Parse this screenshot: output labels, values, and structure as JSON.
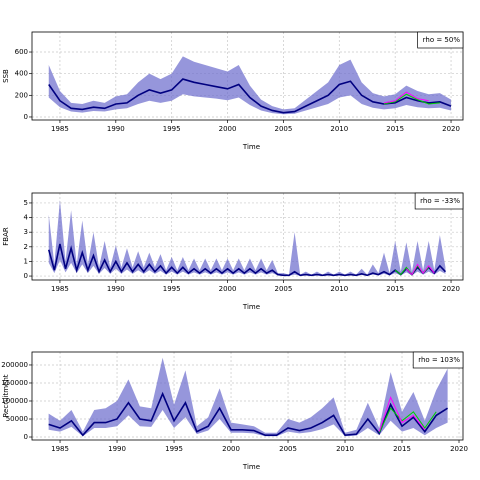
{
  "chart_data": [
    {
      "type": "line",
      "ylabel": "SSB",
      "xlabel": "Time",
      "annotation": "rho = 50%",
      "xlim": [
        1982.5,
        2021.07
      ],
      "xticks": [
        1985,
        1990,
        1995,
        2000,
        2005,
        2010,
        2015,
        2020
      ],
      "ylim": [
        -28,
        785
      ],
      "yticks": [
        0,
        200,
        400,
        600
      ],
      "grid": true,
      "band_color": "#6a6acc",
      "x": [
        1984,
        1985,
        1986,
        1987,
        1988,
        1989,
        1990,
        1991,
        1992,
        1993,
        1994,
        1995,
        1996,
        1997,
        1998,
        1999,
        2000,
        2001,
        2002,
        2003,
        2004,
        2005,
        2006,
        2007,
        2008,
        2009,
        2010,
        2011,
        2012,
        2013,
        2014,
        2015,
        2016,
        2017,
        2018,
        2019,
        2020
      ],
      "series": [
        {
          "color": "#000080",
          "values": [
            300,
            150,
            80,
            70,
            90,
            80,
            120,
            130,
            200,
            250,
            220,
            250,
            350,
            320,
            300,
            280,
            260,
            300,
            180,
            100,
            60,
            40,
            50,
            100,
            150,
            200,
            300,
            330,
            200,
            140,
            120,
            130,
            180,
            150,
            130,
            140,
            100
          ],
          "upper": [
            480,
            240,
            130,
            120,
            150,
            130,
            190,
            210,
            320,
            400,
            350,
            400,
            560,
            510,
            480,
            450,
            420,
            480,
            290,
            160,
            100,
            70,
            80,
            160,
            240,
            320,
            480,
            530,
            320,
            220,
            190,
            210,
            290,
            240,
            210,
            220,
            160
          ],
          "lower": [
            180,
            90,
            50,
            40,
            55,
            50,
            70,
            80,
            120,
            150,
            130,
            150,
            210,
            190,
            180,
            170,
            155,
            180,
            110,
            60,
            35,
            25,
            30,
            60,
            90,
            120,
            180,
            200,
            120,
            85,
            70,
            80,
            110,
            90,
            80,
            85,
            60
          ]
        },
        {
          "color": "#00cc00",
          "x": [
            2014,
            2015,
            2016,
            2017,
            2018,
            2019
          ],
          "values": [
            120,
            140,
            210,
            160,
            120,
            130
          ]
        },
        {
          "color": "#ff00ff",
          "x": [
            2014,
            2015,
            2016,
            2017,
            2018
          ],
          "values": [
            130,
            150,
            230,
            170,
            150
          ]
        }
      ]
    },
    {
      "type": "line",
      "ylabel": "FBAR",
      "xlabel": "Time",
      "annotation": "rho = -33%",
      "xlim": [
        1982.5,
        2021.07
      ],
      "xticks": [
        1985,
        1990,
        1995,
        2000,
        2005,
        2010,
        2015,
        2020
      ],
      "ylim": [
        -0.27,
        5.68
      ],
      "yticks": [
        0,
        1,
        2,
        3,
        4,
        5
      ],
      "grid": true,
      "band_color": "#6a6acc",
      "x": [
        1984,
        1984.5,
        1985,
        1985.5,
        1986,
        1986.5,
        1987,
        1987.5,
        1988,
        1988.5,
        1989,
        1989.5,
        1990,
        1990.5,
        1991,
        1991.5,
        1992,
        1992.5,
        1993,
        1993.5,
        1994,
        1994.5,
        1995,
        1995.5,
        1996,
        1996.5,
        1997,
        1997.5,
        1998,
        1998.5,
        1999,
        1999.5,
        2000,
        2000.5,
        2001,
        2001.5,
        2002,
        2002.5,
        2003,
        2003.5,
        2004,
        2004.5,
        2005,
        2005.5,
        2006,
        2006.5,
        2007,
        2007.5,
        2008,
        2008.5,
        2009,
        2009.5,
        2010,
        2010.5,
        2011,
        2011.5,
        2012,
        2012.5,
        2013,
        2013.5,
        2014,
        2014.5,
        2015,
        2015.5,
        2016,
        2016.5,
        2017,
        2017.5,
        2018,
        2018.5,
        2019,
        2019.5
      ],
      "series": [
        {
          "color": "#000080",
          "values": [
            1.8,
            0.4,
            2.2,
            0.5,
            1.9,
            0.4,
            1.6,
            0.4,
            1.4,
            0.3,
            1.1,
            0.3,
            1.0,
            0.3,
            0.9,
            0.3,
            0.8,
            0.3,
            0.8,
            0.3,
            0.7,
            0.2,
            0.6,
            0.2,
            0.6,
            0.2,
            0.5,
            0.2,
            0.5,
            0.2,
            0.5,
            0.2,
            0.5,
            0.2,
            0.5,
            0.2,
            0.5,
            0.2,
            0.5,
            0.2,
            0.4,
            0.1,
            0.05,
            0.05,
            0.3,
            0.05,
            0.1,
            0.05,
            0.1,
            0.05,
            0.1,
            0.05,
            0.1,
            0.05,
            0.1,
            0.05,
            0.15,
            0.05,
            0.2,
            0.1,
            0.3,
            0.1,
            0.4,
            0.1,
            0.5,
            0.1,
            0.6,
            0.2,
            0.6,
            0.2,
            0.7,
            0.3
          ],
          "upper": [
            4.2,
            0.8,
            5.2,
            1.0,
            4.5,
            0.8,
            3.8,
            0.8,
            3.0,
            0.6,
            2.4,
            0.6,
            2.1,
            0.6,
            1.9,
            0.6,
            1.7,
            0.6,
            1.6,
            0.6,
            1.5,
            0.4,
            1.3,
            0.4,
            1.3,
            0.4,
            1.2,
            0.4,
            1.2,
            0.4,
            1.2,
            0.4,
            1.2,
            0.4,
            1.2,
            0.4,
            1.2,
            0.4,
            1.2,
            0.4,
            1.1,
            0.2,
            0.2,
            0.1,
            3.0,
            0.1,
            0.3,
            0.1,
            0.3,
            0.1,
            0.3,
            0.1,
            0.3,
            0.1,
            0.3,
            0.1,
            0.5,
            0.1,
            0.8,
            0.2,
            1.6,
            0.2,
            2.4,
            0.3,
            2.3,
            0.3,
            2.4,
            0.4,
            2.4,
            0.4,
            2.8,
            0.6
          ],
          "lower": [
            0.9,
            0.2,
            1.1,
            0.25,
            0.9,
            0.2,
            0.8,
            0.2,
            0.7,
            0.15,
            0.55,
            0.15,
            0.5,
            0.15,
            0.45,
            0.15,
            0.4,
            0.15,
            0.4,
            0.15,
            0.35,
            0.1,
            0.3,
            0.1,
            0.3,
            0.1,
            0.25,
            0.1,
            0.25,
            0.1,
            0.25,
            0.1,
            0.25,
            0.1,
            0.25,
            0.1,
            0.25,
            0.1,
            0.25,
            0.1,
            0.2,
            0.05,
            0.02,
            0.02,
            0.1,
            0.02,
            0.05,
            0.02,
            0.05,
            0.02,
            0.05,
            0.02,
            0.05,
            0.02,
            0.05,
            0.02,
            0.07,
            0.02,
            0.1,
            0.05,
            0.15,
            0.05,
            0.2,
            0.05,
            0.25,
            0.05,
            0.3,
            0.1,
            0.3,
            0.1,
            0.35,
            0.15
          ]
        },
        {
          "color": "#00cc00",
          "x": [
            2015,
            2015.5,
            2016,
            2016.5,
            2017,
            2017.5,
            2018
          ],
          "values": [
            0.4,
            0.1,
            0.6,
            0.1,
            0.7,
            0.2,
            0.6
          ]
        },
        {
          "color": "#ff00ff",
          "x": [
            2016,
            2016.5,
            2017,
            2017.5,
            2018,
            2018.5
          ],
          "values": [
            0.5,
            0.1,
            0.8,
            0.2,
            0.7,
            0.2
          ]
        }
      ]
    },
    {
      "type": "line",
      "ylabel": "Recruitment",
      "xlabel": "Time",
      "annotation": "rho = 103%",
      "xlim": [
        1982.54,
        2020.35
      ],
      "xticks": [
        1985,
        1990,
        1995,
        2000,
        2005,
        2010,
        2015,
        2020
      ],
      "ylim": [
        -8300,
        236000
      ],
      "yticks": [
        0,
        50000,
        100000,
        150000,
        200000
      ],
      "grid": true,
      "band_color": "#6a6acc",
      "x": [
        1984,
        1985,
        1986,
        1987,
        1988,
        1989,
        1990,
        1991,
        1992,
        1993,
        1994,
        1995,
        1996,
        1997,
        1998,
        1999,
        2000,
        2001,
        2002,
        2003,
        2004,
        2005,
        2006,
        2007,
        2008,
        2009,
        2010,
        2011,
        2012,
        2013,
        2014,
        2015,
        2016,
        2017,
        2018,
        2019
      ],
      "series": [
        {
          "color": "#000080",
          "values": [
            35000,
            25000,
            45000,
            5000,
            40000,
            40000,
            50000,
            95000,
            50000,
            45000,
            120000,
            45000,
            95000,
            15000,
            30000,
            80000,
            20000,
            20000,
            18000,
            5000,
            5000,
            25000,
            18000,
            25000,
            40000,
            60000,
            5000,
            8000,
            50000,
            10000,
            90000,
            30000,
            55000,
            15000,
            60000,
            80000
          ],
          "upper": [
            65000,
            45000,
            75000,
            15000,
            75000,
            80000,
            100000,
            160000,
            85000,
            80000,
            220000,
            90000,
            185000,
            30000,
            55000,
            135000,
            40000,
            35000,
            30000,
            12000,
            12000,
            50000,
            40000,
            55000,
            80000,
            110000,
            12000,
            20000,
            95000,
            25000,
            180000,
            70000,
            125000,
            45000,
            130000,
            190000
          ],
          "lower": [
            20000,
            15000,
            28000,
            2000,
            25000,
            25000,
            30000,
            60000,
            30000,
            28000,
            75000,
            25000,
            55000,
            8000,
            18000,
            50000,
            12000,
            12000,
            10000,
            2000,
            2000,
            15000,
            10000,
            14000,
            22000,
            35000,
            2000,
            4000,
            25000,
            5000,
            45000,
            15000,
            25000,
            5000,
            25000,
            40000
          ]
        },
        {
          "color": "#00cc00",
          "x": [
            2013,
            2014,
            2015,
            2016,
            2017,
            2018
          ],
          "values": [
            12000,
            80000,
            45000,
            70000,
            25000,
            70000
          ]
        },
        {
          "color": "#ff00ff",
          "x": [
            2013,
            2014,
            2015,
            2016,
            2017
          ],
          "values": [
            15000,
            110000,
            40000,
            60000,
            20000
          ]
        }
      ]
    }
  ]
}
